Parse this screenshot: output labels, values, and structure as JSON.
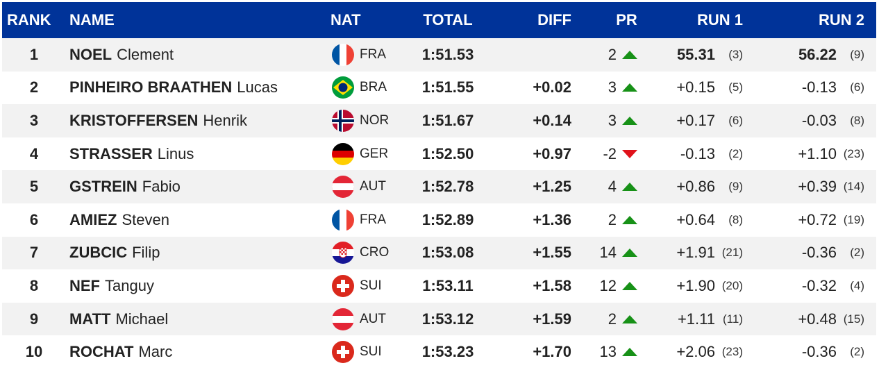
{
  "header": [
    "RANK",
    "NAME",
    "NAT",
    "TOTAL",
    "DIFF",
    "PR",
    "RUN 1",
    "RUN 2"
  ],
  "rows": [
    {
      "rank": "1",
      "surname": "NOEL",
      "firstname": "Clement",
      "nat": "FRA",
      "total": "1:51.53",
      "pr": "2",
      "run1": "55.31",
      "run1_rank": "(3)",
      "run2": "56.22",
      "run2_rank": "(9)"
    },
    {
      "rank": "2",
      "surname": "PINHEIRO BRAATHEN",
      "firstname": "Lucas",
      "nat": "BRA",
      "total": "1:51.55",
      "diff": "+0.02",
      "pr": "3",
      "run1": "+0.15",
      "run1_rank": "(5)",
      "run2": "-0.13",
      "run2_rank": "(6)"
    },
    {
      "rank": "3",
      "surname": "KRISTOFFERSEN",
      "firstname": "Henrik",
      "nat": "NOR",
      "total": "1:51.67",
      "diff": "+0.14",
      "pr": "3",
      "run1": "+0.17",
      "run1_rank": "(6)",
      "run2": "-0.03",
      "run2_rank": "(8)"
    },
    {
      "rank": "4",
      "surname": "STRASSER",
      "firstname": "Linus",
      "nat": "GER",
      "total": "1:52.50",
      "diff": "+0.97",
      "pr": "-2",
      "run1": "-0.13",
      "run1_rank": "(2)",
      "run2": "+1.10",
      "run2_rank": "(23)"
    },
    {
      "rank": "5",
      "surname": "GSTREIN",
      "firstname": "Fabio",
      "nat": "AUT",
      "total": "1:52.78",
      "diff": "+1.25",
      "pr": "4",
      "run1": "+0.86",
      "run1_rank": "(9)",
      "run2": "+0.39",
      "run2_rank": "(14)"
    },
    {
      "rank": "6",
      "surname": "AMIEZ",
      "firstname": "Steven",
      "nat": "FRA",
      "total": "1:52.89",
      "diff": "+1.36",
      "pr": "2",
      "run1": "+0.64",
      "run1_rank": "(8)",
      "run2": "+0.72",
      "run2_rank": "(19)"
    },
    {
      "rank": "7",
      "surname": "ZUBCIC",
      "firstname": "Filip",
      "nat": "CRO",
      "total": "1:53.08",
      "diff": "+1.55",
      "pr": "14",
      "run1": "+1.91",
      "run1_rank": "(21)",
      "run2": "-0.36",
      "run2_rank": "(2)"
    },
    {
      "rank": "8",
      "surname": "NEF",
      "firstname": "Tanguy",
      "nat": "SUI",
      "total": "1:53.11",
      "diff": "+1.58",
      "pr": "12",
      "run1": "+1.90",
      "run1_rank": "(20)",
      "run2": "-0.32",
      "run2_rank": "(4)"
    },
    {
      "rank": "9",
      "surname": "MATT",
      "firstname": "Michael",
      "nat": "AUT",
      "total": "1:53.12",
      "diff": "+1.59",
      "pr": "2",
      "run1": "+1.11",
      "run1_rank": "(11)",
      "run2": "+0.48",
      "run2_rank": "(15)"
    },
    {
      "rank": "10",
      "surname": "ROCHAT",
      "firstname": "Marc",
      "nat": "SUI",
      "total": "1:53.23",
      "diff": "+1.70",
      "pr": "13",
      "run1": "+2.06",
      "run1_rank": "(23)",
      "run2": "-0.36",
      "run2_rank": "(2)"
    }
  ]
}
